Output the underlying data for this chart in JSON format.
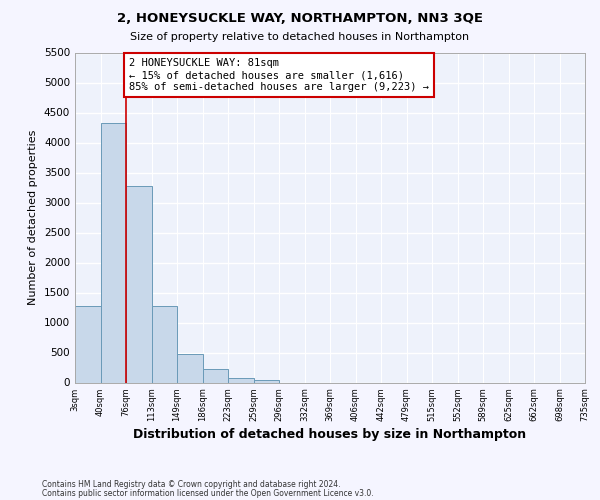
{
  "title": "2, HONEYSUCKLE WAY, NORTHAMPTON, NN3 3QE",
  "subtitle": "Size of property relative to detached houses in Northampton",
  "xlabel": "Distribution of detached houses by size in Northampton",
  "ylabel": "Number of detached properties",
  "bar_color": "#c8d8ea",
  "bar_edge_color": "#6a9ab8",
  "background_color": "#eef2fb",
  "grid_color": "#ffffff",
  "bin_labels": [
    "3sqm",
    "40sqm",
    "76sqm",
    "113sqm",
    "149sqm",
    "186sqm",
    "223sqm",
    "259sqm",
    "296sqm",
    "332sqm",
    "369sqm",
    "406sqm",
    "442sqm",
    "479sqm",
    "515sqm",
    "552sqm",
    "589sqm",
    "625sqm",
    "662sqm",
    "698sqm",
    "735sqm"
  ],
  "bar_values": [
    1270,
    4330,
    3270,
    1280,
    480,
    230,
    80,
    40,
    0,
    0,
    0,
    0,
    0,
    0,
    0,
    0,
    0,
    0,
    0,
    0
  ],
  "ylim": [
    0,
    5500
  ],
  "yticks": [
    0,
    500,
    1000,
    1500,
    2000,
    2500,
    3000,
    3500,
    4000,
    4500,
    5000,
    5500
  ],
  "property_line_x": 2.0,
  "annotation_text": "2 HONEYSUCKLE WAY: 81sqm\n← 15% of detached houses are smaller (1,616)\n85% of semi-detached houses are larger (9,223) →",
  "annotation_box_color": "#ffffff",
  "annotation_box_edge": "#cc0000",
  "property_line_color": "#cc0000",
  "footer1": "Contains HM Land Registry data © Crown copyright and database right 2024.",
  "footer2": "Contains public sector information licensed under the Open Government Licence v3.0."
}
